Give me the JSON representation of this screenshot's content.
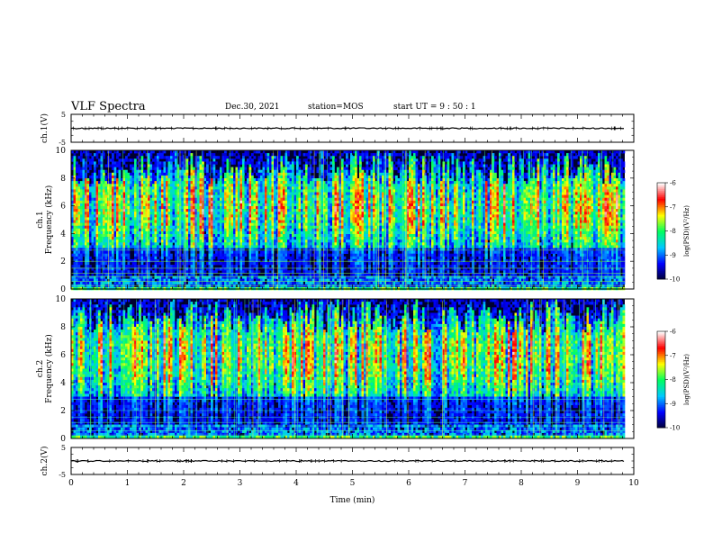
{
  "header": {
    "title": "VLF Spectra",
    "date": "Dec.30, 2021",
    "station": "station=MOS",
    "start_ut": "start  UT =   9 : 50 : 1"
  },
  "chart_data": [
    {
      "type": "line",
      "ylabel": "ch.1(V)",
      "ylim": [
        -5,
        5
      ],
      "yticks": [
        "5",
        "-5"
      ],
      "x": [
        0,
        9.84
      ],
      "y": [
        0,
        0
      ]
    },
    {
      "type": "heatmap",
      "ylabel": "ch.1\nFrequency  (kHz)",
      "xlim": [
        0,
        9.84
      ],
      "ylim": [
        0,
        10
      ],
      "yticks": [
        "0",
        "2",
        "4",
        "6",
        "8",
        "10"
      ],
      "z_label": "log(PSD)(V²/Hz)",
      "z_range": [
        -10,
        -6
      ],
      "z_ticks": [
        "-6",
        "-7",
        "-8",
        "-9",
        "-10"
      ],
      "description_free": true
    },
    {
      "type": "heatmap",
      "ylabel": "ch.2\nFrequency  (kHz)",
      "xlim": [
        0,
        9.84
      ],
      "ylim": [
        0,
        10
      ],
      "yticks": [
        "0",
        "2",
        "4",
        "6",
        "8",
        "10"
      ],
      "z_label": "log(PSD)(V²/Hz)",
      "z_range": [
        -10,
        -6
      ],
      "z_ticks": [
        "-6",
        "-7",
        "-8",
        "-9",
        "-10"
      ]
    },
    {
      "type": "line",
      "ylabel": "ch.2(V)",
      "ylim": [
        -5,
        5
      ],
      "yticks": [
        "5",
        "-5"
      ],
      "x": [
        0,
        9.84
      ],
      "y": [
        0,
        0
      ]
    }
  ],
  "xaxis": {
    "label": "Time  (min)",
    "xlim": [
      0,
      10
    ],
    "ticks": [
      "0",
      "1",
      "2",
      "3",
      "4",
      "5",
      "6",
      "7",
      "8",
      "9",
      "10"
    ]
  },
  "colors": {
    "axis": "#000000",
    "colormap": [
      "#000033",
      "#0000ff",
      "#00c8ff",
      "#00ff60",
      "#ffff00",
      "#ff0000",
      "#ffffff"
    ]
  }
}
